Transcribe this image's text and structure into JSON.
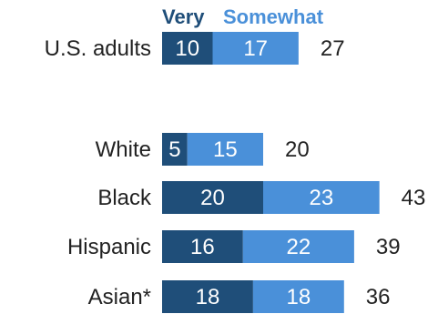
{
  "chart_data": {
    "type": "bar",
    "orientation": "horizontal",
    "stacked": true,
    "legend": {
      "position": "top",
      "entries": [
        "Very",
        "Somewhat"
      ]
    },
    "series": [
      {
        "name": "Very",
        "color": "#1f4e79"
      },
      {
        "name": "Somewhat",
        "color": "#4a90d9"
      }
    ],
    "rows": [
      {
        "label": "U.S. adults",
        "very": 10,
        "somewhat": 17,
        "total": 27
      },
      {
        "label": "White",
        "very": 5,
        "somewhat": 15,
        "total": 20
      },
      {
        "label": "Black",
        "very": 20,
        "somewhat": 23,
        "total": 43
      },
      {
        "label": "Hispanic",
        "very": 16,
        "somewhat": 22,
        "total": 39
      },
      {
        "label": "Asian*",
        "very": 18,
        "somewhat": 18,
        "total": 36
      }
    ]
  }
}
